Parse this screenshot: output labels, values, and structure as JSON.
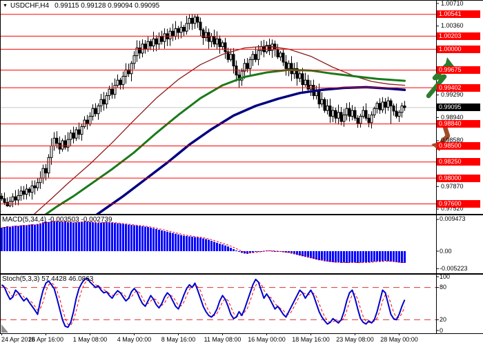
{
  "window": {
    "dropdown_icon": "▼",
    "symbol_period": "USDCHF,H4",
    "quotes": "0.99115 0.99128 0.99094 0.99095"
  },
  "colors": {
    "level_line": "#ff0000",
    "tag_bg": "#ff0000",
    "tag_text": "#ffffff",
    "current_tag_bg": "#000000",
    "current_line": "#c8c8c8",
    "bull": "#ffffff",
    "bear": "#000000",
    "candle_outline": "#000000",
    "ma_fast": "#8b1a1a",
    "ma_mid": "#1a7a1a",
    "ma_slow": "#000080",
    "macd_bar": "#0000ff",
    "macd_signal": "#ff0000",
    "stoch_k": "#0000cc",
    "stoch_d": "#ff0000",
    "stoch_level": "#e03030",
    "arrow_up": "#2d7d2d",
    "arrow_down": "#a14b28",
    "border": "#000000",
    "scroll_icon": "#909090"
  },
  "price_axis": {
    "plain_ticks": [
      {
        "label": "1.00710",
        "price": 1.0071
      },
      {
        "label": "1.00360",
        "price": 1.0036
      },
      {
        "label": "0.99290",
        "price": 0.9929
      },
      {
        "label": "0.98940",
        "price": 0.9894
      },
      {
        "label": "0.98580",
        "price": 0.9858
      },
      {
        "label": "0.97870",
        "price": 0.9787
      },
      {
        "label": "0.97520",
        "price": 0.9752
      }
    ],
    "level_tags": [
      {
        "label": "1.00541",
        "price": 1.00541
      },
      {
        "label": "1.00203",
        "price": 1.00203
      },
      {
        "label": "1.00000",
        "price": 1.0
      },
      {
        "label": "0.99675",
        "price": 0.99675
      },
      {
        "label": "0.99402",
        "price": 0.99402
      },
      {
        "label": "0.98840",
        "price": 0.9884
      },
      {
        "label": "0.98500",
        "price": 0.985
      },
      {
        "label": "0.98250",
        "price": 0.9825
      },
      {
        "label": "0.98000",
        "price": 0.98
      },
      {
        "label": "0.97600",
        "price": 0.976
      }
    ],
    "current": {
      "label": "0.99095",
      "price": 0.99095
    }
  },
  "time_axis": {
    "labels": [
      {
        "text": "24 Apr 2018",
        "index": 0
      },
      {
        "text": "26 Apr 16:00",
        "index": 16
      },
      {
        "text": "1 May 08:00",
        "index": 32
      },
      {
        "text": "4 May 00:00",
        "index": 48
      },
      {
        "text": "8 May 16:00",
        "index": 64
      },
      {
        "text": "11 May 08:00",
        "index": 80
      },
      {
        "text": "16 May 00:00",
        "index": 96
      },
      {
        "text": "18 May 16:00",
        "index": 112
      },
      {
        "text": "23 May 08:00",
        "index": 128
      },
      {
        "text": "28 May 00:00",
        "index": 144
      }
    ]
  },
  "chart_data": {
    "type": "candlestick",
    "symbol": "USDCHF",
    "timeframe": "H4",
    "title": "USDCHF,H4 0.99115 0.99128 0.99094 0.99095",
    "price_range": [
      0.9752,
      1.0071
    ],
    "period_high": 1.00541,
    "current_price": 0.99095,
    "candles": {
      "open_first": 0.9772,
      "closes": [
        0.9768,
        0.9762,
        0.9757,
        0.9764,
        0.9771,
        0.9766,
        0.9773,
        0.978,
        0.9775,
        0.9783,
        0.9778,
        0.9788,
        0.9785,
        0.9793,
        0.98,
        0.9815,
        0.9808,
        0.9832,
        0.985,
        0.9862,
        0.9854,
        0.9845,
        0.9858,
        0.9848,
        0.986,
        0.987,
        0.9862,
        0.9875,
        0.9868,
        0.988,
        0.989,
        0.9884,
        0.9896,
        0.9908,
        0.99,
        0.9912,
        0.9922,
        0.9915,
        0.9928,
        0.9938,
        0.993,
        0.9944,
        0.9952,
        0.9945,
        0.9958,
        0.9968,
        0.9962,
        0.9978,
        0.999,
        1.0002,
        0.9994,
        1.0008,
        1.0,
        1.0012,
        1.0005,
        1.0016,
        1.0008,
        1.002,
        1.0012,
        1.0024,
        1.0016,
        1.0028,
        1.002,
        1.0032,
        1.0026,
        1.0034,
        1.0028,
        1.004,
        1.0048,
        1.004,
        1.005,
        1.0042,
        1.003,
        1.0018,
        1.0026,
        1.0012,
        1.002,
        1.0008,
        1.0016,
        1.0004,
        1.001,
        0.9996,
        0.9984,
        0.9992,
        0.9974,
        0.996,
        0.9952,
        0.9966,
        0.9978,
        0.997,
        0.9984,
        0.9992,
        0.9984,
        0.9998,
        1.0004,
        0.9996,
        1.0006,
        0.9998,
        1.0008,
        1.0,
        0.9988,
        0.9994,
        0.998,
        0.997,
        0.9978,
        0.9962,
        0.997,
        0.9955,
        0.9962,
        0.9945,
        0.9952,
        0.9938,
        0.9944,
        0.9928,
        0.9935,
        0.9915,
        0.9922,
        0.9905,
        0.9912,
        0.9896,
        0.9905,
        0.9893,
        0.9902,
        0.9888,
        0.9898,
        0.9908,
        0.9896,
        0.9905,
        0.9893,
        0.9885,
        0.9896,
        0.9905,
        0.9893,
        0.9886,
        0.9898,
        0.9908,
        0.9916,
        0.9906,
        0.9918,
        0.991,
        0.992,
        0.9912,
        0.9904,
        0.9896,
        0.9902,
        0.9912,
        0.99095
      ],
      "high_overrides": {
        "70": 1.00541
      },
      "low_overrides": {
        "2": 0.97555,
        "86": 0.99405,
        "129": 0.9878,
        "133": 0.9879,
        "141": 0.9884
      }
    },
    "ma_lines": [
      {
        "name": "ma-fast-red",
        "points": [
          [
            6,
            0.9718
          ],
          [
            12,
            0.9745
          ],
          [
            18,
            0.9768
          ],
          [
            24,
            0.9792
          ],
          [
            32,
            0.9822
          ],
          [
            40,
            0.9855
          ],
          [
            48,
            0.989
          ],
          [
            56,
            0.9924
          ],
          [
            64,
            0.9953
          ],
          [
            72,
            0.9976
          ],
          [
            80,
            0.9992
          ],
          [
            88,
            1.0002
          ],
          [
            96,
            1.0005
          ],
          [
            104,
            1.0
          ],
          [
            112,
            0.9989
          ],
          [
            120,
            0.9972
          ],
          [
            128,
            0.9958
          ],
          [
            134,
            0.995
          ],
          [
            140,
            0.9946
          ],
          [
            146,
            0.9944
          ]
        ]
      },
      {
        "name": "ma-mid-green",
        "points": [
          [
            14,
            0.9738
          ],
          [
            20,
            0.9756
          ],
          [
            26,
            0.9772
          ],
          [
            32,
            0.979
          ],
          [
            40,
            0.9814
          ],
          [
            48,
            0.984
          ],
          [
            56,
            0.987
          ],
          [
            64,
            0.9898
          ],
          [
            72,
            0.9924
          ],
          [
            80,
            0.9944
          ],
          [
            88,
            0.9957
          ],
          [
            96,
            0.9964
          ],
          [
            104,
            0.9968
          ],
          [
            112,
            0.9967
          ],
          [
            120,
            0.9962
          ],
          [
            128,
            0.9958
          ],
          [
            136,
            0.9954
          ],
          [
            146,
            0.9951
          ]
        ]
      },
      {
        "name": "ma-slow-blue",
        "points": [
          [
            30,
            0.973
          ],
          [
            36,
            0.9748
          ],
          [
            44,
            0.9772
          ],
          [
            52,
            0.9798
          ],
          [
            60,
            0.9824
          ],
          [
            68,
            0.9852
          ],
          [
            76,
            0.9876
          ],
          [
            84,
            0.9897
          ],
          [
            92,
            0.9912
          ],
          [
            100,
            0.9923
          ],
          [
            108,
            0.9932
          ],
          [
            116,
            0.9937
          ],
          [
            124,
            0.994
          ],
          [
            132,
            0.9941
          ],
          [
            140,
            0.9939
          ],
          [
            146,
            0.9937
          ]
        ]
      }
    ],
    "macd": {
      "label": "MACD(5,34,4)",
      "values_text": "-0.003503 -0.002739",
      "scale_max": 0.009473,
      "scale_min": -0.005223,
      "axis_labels": [
        {
          "text": "0.009473",
          "value": 0.009473
        },
        {
          "text": "0.00",
          "value": 0
        },
        {
          "text": "-0.005223",
          "value": -0.005223
        }
      ],
      "signal_period": 4,
      "histogram": [
        0.007,
        0.0072,
        0.0074,
        0.0073,
        0.0075,
        0.0076,
        0.0075,
        0.0077,
        0.0078,
        0.0077,
        0.0079,
        0.008,
        0.0079,
        0.0081,
        0.0083,
        0.0086,
        0.0088,
        0.0087,
        0.0089,
        0.009,
        0.0089,
        0.0088,
        0.0087,
        0.0088,
        0.0086,
        0.0087,
        0.0085,
        0.0086,
        0.0087,
        0.0088,
        0.0089,
        0.0088,
        0.0087,
        0.0086,
        0.0085,
        0.0084,
        0.0085,
        0.0086,
        0.0087,
        0.0086,
        0.0085,
        0.0084,
        0.0083,
        0.0082,
        0.0081,
        0.008,
        0.0079,
        0.0078,
        0.0077,
        0.0076,
        0.0075,
        0.0074,
        0.0073,
        0.0072,
        0.007,
        0.0068,
        0.0066,
        0.0064,
        0.0062,
        0.006,
        0.0058,
        0.0056,
        0.0054,
        0.0052,
        0.005,
        0.0048,
        0.0046,
        0.0045,
        0.0044,
        0.0043,
        0.0042,
        0.0041,
        0.004,
        0.0038,
        0.0036,
        0.0034,
        0.0031,
        0.0028,
        0.0025,
        0.0022,
        0.002,
        0.0017,
        0.0014,
        0.001,
        0.0006,
        0.0002,
        -0.0002,
        -0.0005,
        -0.0007,
        -0.0008,
        -0.0006,
        -0.0004,
        -0.0002,
        -0.0001,
        0.0,
        0.0001,
        0.0002,
        0.0002,
        0.0001,
        0.0,
        -0.0001,
        -0.0002,
        -0.0003,
        -0.0004,
        -0.0005,
        -0.0007,
        -0.0009,
        -0.0011,
        -0.0013,
        -0.0015,
        -0.0017,
        -0.0019,
        -0.0021,
        -0.0023,
        -0.0025,
        -0.0027,
        -0.0028,
        -0.003,
        -0.0031,
        -0.0032,
        -0.0033,
        -0.0034,
        -0.0034,
        -0.0035,
        -0.0034,
        -0.0035,
        -0.0034,
        -0.0033,
        -0.0034,
        -0.0035,
        -0.0034,
        -0.0033,
        -0.0034,
        -0.0033,
        -0.0032,
        -0.0031,
        -0.003,
        -0.0031,
        -0.003,
        -0.0029,
        -0.003,
        -0.0031,
        -0.0032,
        -0.0033,
        -0.0034,
        -0.0035,
        -0.0035
      ]
    },
    "stoch": {
      "label": "Stoch(5,3,3)",
      "values_text": "57.4428 46.0863",
      "levels": [
        80,
        20
      ],
      "axis_labels": [
        {
          "text": "100",
          "value": 100
        },
        {
          "text": "80",
          "value": 80
        },
        {
          "text": "20",
          "value": 20
        },
        {
          "text": "0",
          "value": 0
        }
      ],
      "d_period": 3,
      "k": [
        85,
        80,
        68,
        58,
        62,
        75,
        70,
        62,
        55,
        60,
        52,
        45,
        38,
        30,
        55,
        75,
        88,
        92,
        85,
        78,
        60,
        40,
        20,
        8,
        6,
        15,
        35,
        60,
        78,
        88,
        95,
        97,
        90,
        85,
        80,
        83,
        75,
        70,
        72,
        65,
        60,
        68,
        74,
        70,
        62,
        55,
        60,
        72,
        78,
        72,
        60,
        50,
        45,
        55,
        65,
        58,
        48,
        42,
        50,
        62,
        70,
        65,
        55,
        45,
        40,
        52,
        66,
        78,
        85,
        80,
        88,
        75,
        60,
        45,
        35,
        28,
        25,
        30,
        40,
        55,
        65,
        58,
        45,
        30,
        22,
        25,
        35,
        28,
        40,
        55,
        70,
        85,
        95,
        90,
        75,
        60,
        68,
        60,
        50,
        40,
        45,
        38,
        30,
        25,
        35,
        45,
        55,
        65,
        75,
        70,
        60,
        68,
        75,
        65,
        50,
        35,
        25,
        18,
        12,
        15,
        22,
        18,
        14,
        20,
        35,
        55,
        70,
        75,
        60,
        40,
        22,
        15,
        12,
        18,
        14,
        20,
        35,
        55,
        75,
        70,
        50,
        30,
        22,
        20,
        30,
        45,
        57
      ]
    },
    "annotations": [
      {
        "name": "up-arrow",
        "direction": "up"
      },
      {
        "name": "down-arrow",
        "direction": "down"
      }
    ]
  }
}
